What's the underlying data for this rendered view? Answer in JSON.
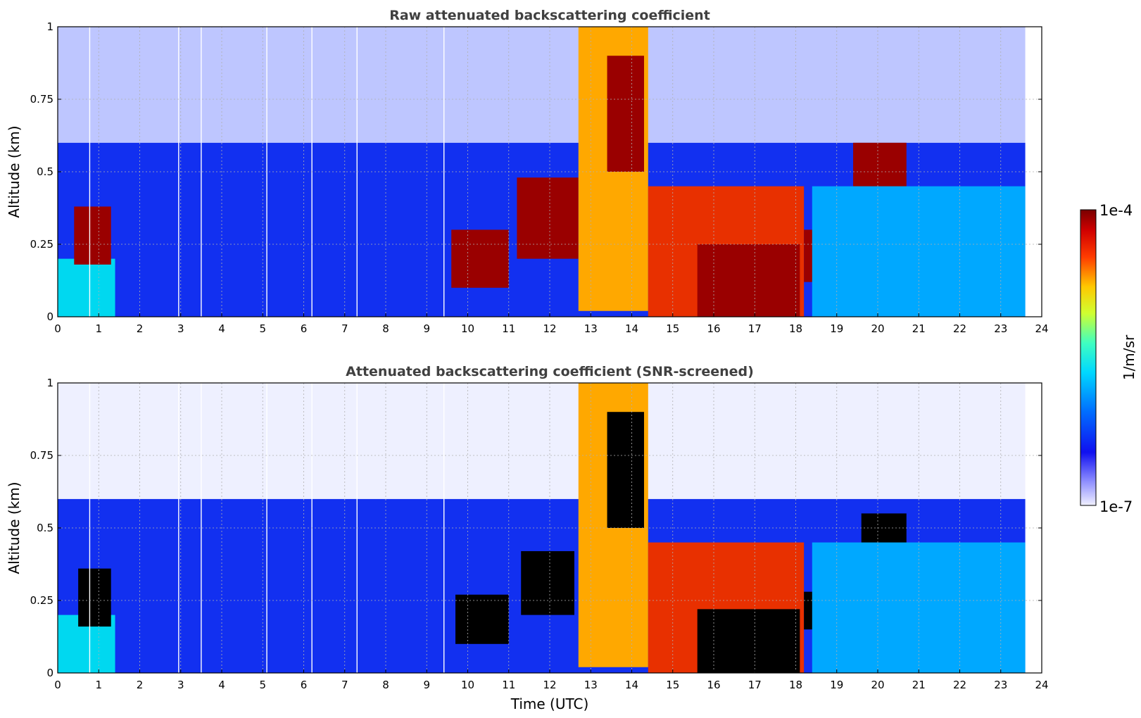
{
  "chart_data": [
    {
      "type": "heatmap",
      "title": "Raw attenuated backscattering coefficient",
      "xlabel": "",
      "ylabel": "Altitude (km)",
      "xlim": [
        0,
        24
      ],
      "ylim": [
        0,
        1
      ],
      "x_ticks": [
        "0",
        "1",
        "2",
        "3",
        "4",
        "5",
        "6",
        "7",
        "8",
        "9",
        "10",
        "11",
        "12",
        "13",
        "14",
        "15",
        "16",
        "17",
        "18",
        "19",
        "20",
        "21",
        "22",
        "23",
        "24"
      ],
      "y_ticks": [
        "0",
        "0.25",
        "0.5",
        "0.75",
        "1"
      ],
      "grid": true,
      "data_end_hour": 23.6,
      "vertical_gap_hours": [
        0.78,
        2.95,
        3.5,
        5.1,
        6.2,
        7.3,
        9.42
      ],
      "layers": [
        {
          "from_hour": 0.0,
          "to_hour": 1.4,
          "bottom_km": 0.0,
          "top_km": 0.2,
          "level": "cyan"
        },
        {
          "from_hour": 0.4,
          "to_hour": 1.3,
          "bottom_km": 0.18,
          "top_km": 0.38,
          "level": "dark red"
        },
        {
          "from_hour": 9.6,
          "to_hour": 11.0,
          "bottom_km": 0.1,
          "top_km": 0.3,
          "level": "dark red"
        },
        {
          "from_hour": 11.2,
          "to_hour": 12.7,
          "bottom_km": 0.2,
          "top_km": 0.48,
          "level": "dark red"
        },
        {
          "from_hour": 12.7,
          "to_hour": 14.4,
          "bottom_km": 0.02,
          "top_km": 1.0,
          "level": "orange-yellow"
        },
        {
          "from_hour": 13.4,
          "to_hour": 14.3,
          "bottom_km": 0.5,
          "top_km": 0.9,
          "level": "dark red"
        },
        {
          "from_hour": 14.4,
          "to_hour": 18.2,
          "bottom_km": 0.0,
          "top_km": 0.45,
          "level": "red"
        },
        {
          "from_hour": 15.6,
          "to_hour": 18.1,
          "bottom_km": 0.0,
          "top_km": 0.25,
          "level": "dark red"
        },
        {
          "from_hour": 18.2,
          "to_hour": 19.4,
          "bottom_km": 0.12,
          "top_km": 0.3,
          "level": "dark red"
        },
        {
          "from_hour": 19.4,
          "to_hour": 20.7,
          "bottom_km": 0.35,
          "top_km": 0.6,
          "level": "dark red"
        },
        {
          "from_hour": 18.4,
          "to_hour": 23.6,
          "bottom_km": 0.0,
          "top_km": 0.45,
          "level": "light blue"
        }
      ]
    },
    {
      "type": "heatmap",
      "title": "Attenuated backscattering coefficient (SNR-screened)",
      "xlabel": "Time (UTC)",
      "ylabel": "Altitude (km)",
      "xlim": [
        0,
        24
      ],
      "ylim": [
        0,
        1
      ],
      "x_ticks": [
        "0",
        "1",
        "2",
        "3",
        "4",
        "5",
        "6",
        "7",
        "8",
        "9",
        "10",
        "11",
        "12",
        "13",
        "14",
        "15",
        "16",
        "17",
        "18",
        "19",
        "20",
        "21",
        "22",
        "23",
        "24"
      ],
      "y_ticks": [
        "0",
        "0.25",
        "0.5",
        "0.75",
        "1"
      ],
      "grid": true,
      "data_end_hour": 23.6,
      "vertical_gap_hours": [
        0.78,
        2.95,
        3.5,
        5.1,
        6.2,
        7.3,
        9.42
      ],
      "layers": [
        {
          "from_hour": 0.0,
          "to_hour": 1.4,
          "bottom_km": 0.0,
          "top_km": 0.2,
          "level": "cyan"
        },
        {
          "from_hour": 0.5,
          "to_hour": 1.3,
          "bottom_km": 0.16,
          "top_km": 0.36,
          "level": "black (saturated)"
        },
        {
          "from_hour": 9.7,
          "to_hour": 11.0,
          "bottom_km": 0.1,
          "top_km": 0.27,
          "level": "black (saturated)"
        },
        {
          "from_hour": 11.3,
          "to_hour": 12.6,
          "bottom_km": 0.2,
          "top_km": 0.42,
          "level": "black (saturated)"
        },
        {
          "from_hour": 12.7,
          "to_hour": 14.4,
          "bottom_km": 0.02,
          "top_km": 1.0,
          "level": "orange-yellow"
        },
        {
          "from_hour": 13.4,
          "to_hour": 14.3,
          "bottom_km": 0.5,
          "top_km": 0.9,
          "level": "black (saturated)"
        },
        {
          "from_hour": 14.4,
          "to_hour": 18.2,
          "bottom_km": 0.0,
          "top_km": 0.45,
          "level": "red"
        },
        {
          "from_hour": 15.6,
          "to_hour": 18.1,
          "bottom_km": 0.0,
          "top_km": 0.22,
          "level": "black (saturated)"
        },
        {
          "from_hour": 18.2,
          "to_hour": 19.4,
          "bottom_km": 0.15,
          "top_km": 0.28,
          "level": "black (saturated)"
        },
        {
          "from_hour": 19.6,
          "to_hour": 20.7,
          "bottom_km": 0.4,
          "top_km": 0.55,
          "level": "black (saturated)"
        },
        {
          "from_hour": 18.4,
          "to_hour": 23.6,
          "bottom_km": 0.0,
          "top_km": 0.45,
          "level": "light blue"
        }
      ]
    }
  ],
  "colorbar": {
    "label": "1/m/sr",
    "max_label": "1e-4",
    "min_label": "1e-7",
    "scale": "log",
    "colormap": [
      "#ffffff",
      "#2020e0",
      "#0078ff",
      "#00e0ff",
      "#c8ff32",
      "#ffd200",
      "#ff4000",
      "#c80000",
      "#800000"
    ]
  }
}
